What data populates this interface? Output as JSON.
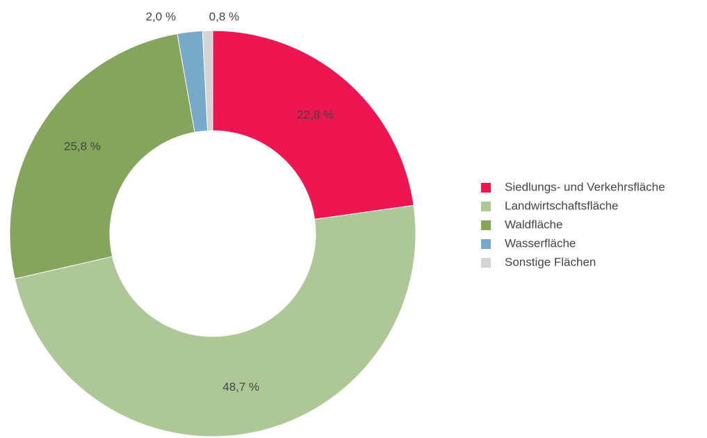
{
  "chart_data": {
    "type": "donut",
    "categories": [
      "Siedlungs- und Verkehrsfläche",
      "Landwirtschaftsfläche",
      "Waldfläche",
      "Wasserfläche",
      "Sonstige Flächen"
    ],
    "values": [
      22.8,
      48.7,
      25.8,
      2.0,
      0.8
    ],
    "value_labels": [
      "22,8 %",
      "48,7 %",
      "25,8 %",
      "2,0 %",
      "0,8 %"
    ],
    "colors": [
      "#ed1651",
      "#adc896",
      "#84a55b",
      "#77a9c9",
      "#d4d4d4"
    ],
    "legend": "right"
  }
}
